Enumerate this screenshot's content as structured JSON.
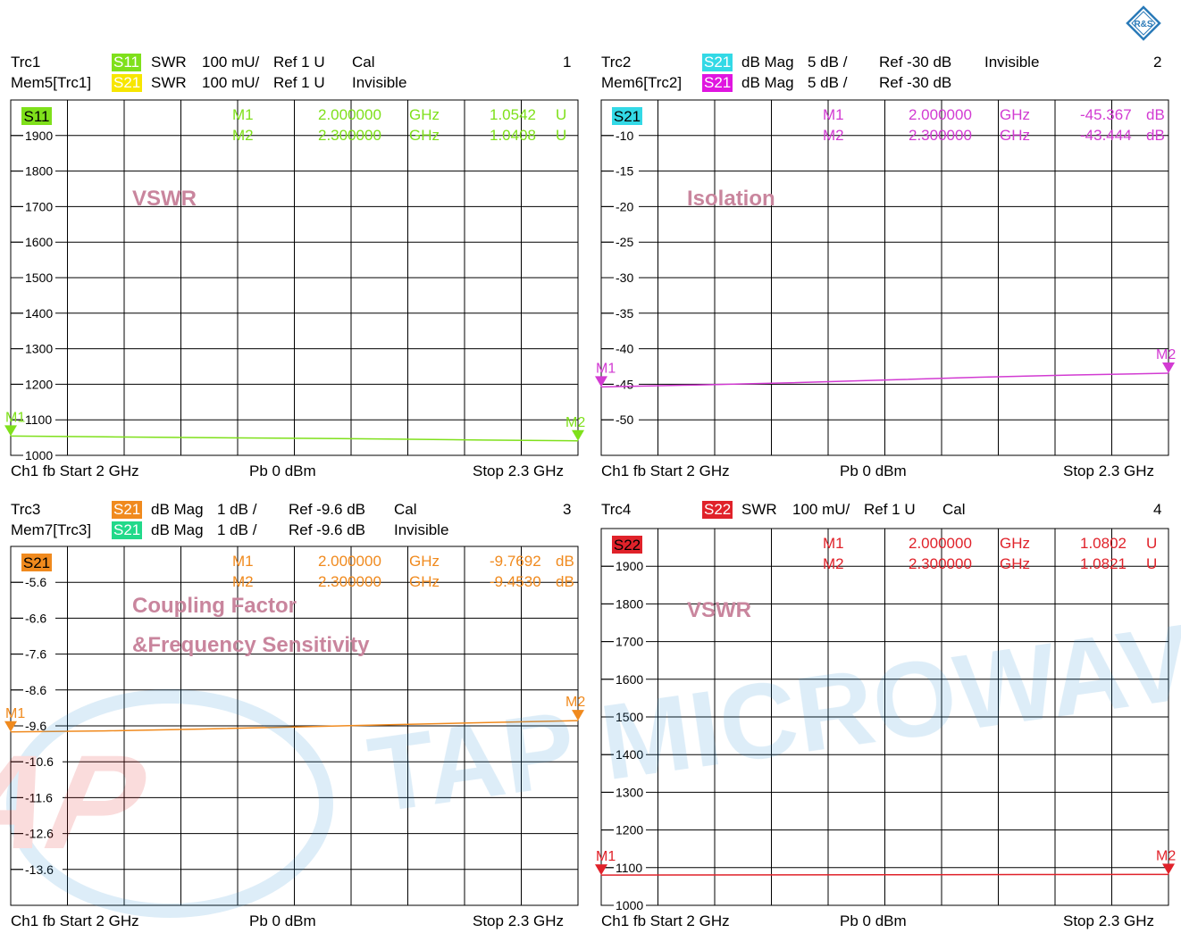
{
  "logo_text": "R&S",
  "watermark": {
    "logo_text": "TAP",
    "word": "TAP MICROWAVE"
  },
  "panels": [
    {
      "number": "1",
      "header": [
        {
          "name": "Trc1",
          "trace_tag": "S11",
          "tag_color": "#7fe01b",
          "format": "SWR",
          "scale": "100 mU/",
          "ref": "Ref 1 U",
          "status": "Cal"
        },
        {
          "name": "Mem5[Trc1]",
          "trace_tag": "S21",
          "tag_color": "#f7e600",
          "format": "SWR",
          "scale": "100 mU/",
          "ref": "Ref 1 U",
          "status": "Invisible"
        }
      ],
      "active_tag": "S11",
      "active_color": "#7fe01b",
      "active_text": "#000000",
      "marker_color": "#7fe01b",
      "markers": [
        {
          "name": "M1",
          "freq": "2.000000",
          "unit": "GHz",
          "value": "1.0542",
          "vunit": "U"
        },
        {
          "name": "M2",
          "freq": "2.300000",
          "unit": "GHz",
          "value": "1.0408",
          "vunit": "U"
        }
      ],
      "annotations": [
        "VSWR"
      ],
      "footer": {
        "left": "Ch1  fb  Start  2 GHz",
        "mid": "Pb   0 dBm",
        "right": "Stop  2.3 GHz"
      },
      "chart_data": {
        "type": "line",
        "y_ticks": [
          "1900",
          "1800",
          "1700",
          "1600",
          "1500",
          "1400",
          "1300",
          "1200",
          "1100",
          "1000"
        ],
        "x_range": [
          2.0,
          2.3
        ],
        "x_unit": "GHz",
        "ylim": [
          1.0,
          2.0
        ],
        "series": [
          {
            "x": [
              2.0,
              2.05,
              2.1,
              2.15,
              2.2,
              2.25,
              2.3
            ],
            "values": [
              1.0542,
              1.052,
              1.05,
              1.048,
              1.046,
              1.043,
              1.0408
            ]
          }
        ],
        "grid": true
      }
    },
    {
      "number": "2",
      "header": [
        {
          "name": "Trc2",
          "trace_tag": "S21",
          "tag_color": "#33d9e6",
          "format": "dB Mag",
          "scale": "5 dB /",
          "ref": "Ref -30 dB",
          "status": "Invisible"
        },
        {
          "name": "Mem6[Trc2]",
          "trace_tag": "S21",
          "tag_color": "#e015e0",
          "format": "dB Mag",
          "scale": "5 dB /",
          "ref": "Ref -30 dB",
          "status": ""
        }
      ],
      "active_tag": "S21",
      "active_color": "#33d9e6",
      "active_text": "#000000",
      "marker_color": "#d23bd2",
      "markers": [
        {
          "name": "M1",
          "freq": "2.000000",
          "unit": "GHz",
          "value": "-45.367",
          "vunit": "dB"
        },
        {
          "name": "M2",
          "freq": "2.300000",
          "unit": "GHz",
          "value": "-43.444",
          "vunit": "dB"
        }
      ],
      "annotations": [
        "Isolation"
      ],
      "footer": {
        "left": "Ch1  fb  Start  2 GHz",
        "mid": "Pb   0 dBm",
        "right": "Stop  2.3 GHz"
      },
      "chart_data": {
        "type": "line",
        "y_ticks": [
          "-10",
          "-15",
          "-20",
          "-25",
          "-30",
          "-35",
          "-40",
          "-45",
          "-50"
        ],
        "x_range": [
          2.0,
          2.3
        ],
        "x_unit": "GHz",
        "ylim": [
          -55,
          -5
        ],
        "series": [
          {
            "x": [
              2.0,
              2.05,
              2.1,
              2.15,
              2.2,
              2.25,
              2.3
            ],
            "values": [
              -45.367,
              -45.1,
              -44.8,
              -44.4,
              -44.0,
              -43.7,
              -43.444
            ]
          }
        ],
        "grid": true
      }
    },
    {
      "number": "3",
      "header": [
        {
          "name": "Trc3",
          "trace_tag": "S21",
          "tag_color": "#f08a1e",
          "format": "dB Mag",
          "scale": "1 dB /",
          "ref": "Ref -9.6 dB",
          "status": "Cal"
        },
        {
          "name": "Mem7[Trc3]",
          "trace_tag": "S21",
          "tag_color": "#22d98a",
          "format": "dB Mag",
          "scale": "1 dB /",
          "ref": "Ref -9.6 dB",
          "status": "Invisible"
        }
      ],
      "active_tag": "S21",
      "active_color": "#f08a1e",
      "active_text": "#000000",
      "marker_color": "#f08a1e",
      "markers": [
        {
          "name": "M1",
          "freq": "2.000000",
          "unit": "GHz",
          "value": "-9.7692",
          "vunit": "dB"
        },
        {
          "name": "M2",
          "freq": "2.300000",
          "unit": "GHz",
          "value": "-9.4530",
          "vunit": "dB"
        }
      ],
      "annotations": [
        "Coupling Factor",
        "&Frequency Sensitivity"
      ],
      "footer": {
        "left": "Ch1  fb  Start  2 GHz",
        "mid": "Pb   0 dBm",
        "right": "Stop  2.3 GHz"
      },
      "chart_data": {
        "type": "line",
        "y_ticks": [
          "-5.6",
          "-6.6",
          "-7.6",
          "-8.6",
          "-9.6",
          "-10.6",
          "-11.6",
          "-12.6",
          "-13.6"
        ],
        "x_range": [
          2.0,
          2.3
        ],
        "x_unit": "GHz",
        "ylim": [
          -14.6,
          -4.6
        ],
        "series": [
          {
            "x": [
              2.0,
              2.05,
              2.1,
              2.15,
              2.2,
              2.25,
              2.3
            ],
            "values": [
              -9.7692,
              -9.74,
              -9.69,
              -9.63,
              -9.57,
              -9.51,
              -9.453
            ]
          }
        ],
        "grid": true
      }
    },
    {
      "number": "4",
      "header": [
        {
          "name": "Trc4",
          "trace_tag": "S22",
          "tag_color": "#e0222a",
          "format": "SWR",
          "scale": "100 mU/",
          "ref": "Ref 1 U",
          "status": "Cal"
        }
      ],
      "active_tag": "S22",
      "active_color": "#e0222a",
      "active_text": "#000000",
      "marker_color": "#e0222a",
      "markers": [
        {
          "name": "M1",
          "freq": "2.000000",
          "unit": "GHz",
          "value": "1.0802",
          "vunit": "U"
        },
        {
          "name": "M2",
          "freq": "2.300000",
          "unit": "GHz",
          "value": "1.0821",
          "vunit": "U"
        }
      ],
      "annotations": [
        "VSWR"
      ],
      "footer": {
        "left": "Ch1  fb  Start  2 GHz",
        "mid": "Pb   0 dBm",
        "right": "Stop  2.3 GHz"
      },
      "chart_data": {
        "type": "line",
        "y_ticks": [
          "1900",
          "1800",
          "1700",
          "1600",
          "1500",
          "1400",
          "1300",
          "1200",
          "1100",
          "1000"
        ],
        "x_range": [
          2.0,
          2.3
        ],
        "x_unit": "GHz",
        "ylim": [
          1.0,
          2.0
        ],
        "series": [
          {
            "x": [
              2.0,
              2.05,
              2.1,
              2.15,
              2.2,
              2.25,
              2.3
            ],
            "values": [
              1.0802,
              1.0805,
              1.081,
              1.0812,
              1.0815,
              1.0818,
              1.0821
            ]
          }
        ],
        "grid": true
      }
    }
  ]
}
